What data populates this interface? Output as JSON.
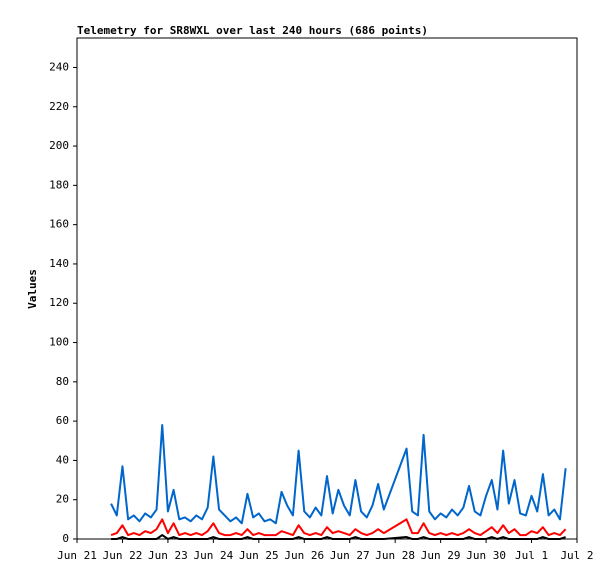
{
  "chart_data": {
    "type": "line",
    "title": "Telemetry for SR8WXL over last 240 hours (686 points)",
    "y_label": "Values",
    "xlim": [
      0,
      11
    ],
    "xticks": [
      {
        "value": 0,
        "label": "Jun 21"
      },
      {
        "value": 1,
        "label": "Jun 22"
      },
      {
        "value": 2,
        "label": "Jun 23"
      },
      {
        "value": 3,
        "label": "Jun 24"
      },
      {
        "value": 4,
        "label": "Jun 25"
      },
      {
        "value": 5,
        "label": "Jun 26"
      },
      {
        "value": 6,
        "label": "Jun 27"
      },
      {
        "value": 7,
        "label": "Jun 28"
      },
      {
        "value": 8,
        "label": "Jun 29"
      },
      {
        "value": 9,
        "label": "Jun 30"
      },
      {
        "value": 10,
        "label": "Jul 1"
      },
      {
        "value": 11,
        "label": "Jul 2"
      }
    ],
    "ylim": [
      0,
      255
    ],
    "yticks": [
      0,
      20,
      40,
      60,
      80,
      100,
      120,
      140,
      160,
      180,
      200,
      220,
      240
    ],
    "x": [
      0.75,
      0.875,
      1,
      1.125,
      1.25,
      1.375,
      1.5,
      1.625,
      1.75,
      1.875,
      2,
      2.125,
      2.25,
      2.375,
      2.5,
      2.625,
      2.75,
      2.875,
      3,
      3.125,
      3.25,
      3.375,
      3.5,
      3.625,
      3.75,
      3.875,
      4,
      4.125,
      4.25,
      4.375,
      4.5,
      4.625,
      4.75,
      4.875,
      5,
      5.125,
      5.25,
      5.375,
      5.5,
      5.625,
      5.75,
      5.875,
      6,
      6.125,
      6.25,
      6.375,
      6.5,
      6.625,
      6.75,
      7.25,
      7.375,
      7.5,
      7.625,
      7.75,
      7.875,
      8,
      8.125,
      8.25,
      8.375,
      8.5,
      8.625,
      8.75,
      8.875,
      9,
      9.125,
      9.25,
      9.375,
      9.5,
      9.625,
      9.75,
      9.875,
      10,
      10.125,
      10.25,
      10.375,
      10.5,
      10.625,
      10.75
    ],
    "series": [
      {
        "color": "#0066cc",
        "values": [
          18,
          12,
          37,
          10,
          12,
          9,
          13,
          11,
          15,
          58,
          14,
          25,
          10,
          11,
          9,
          12,
          10,
          16,
          42,
          15,
          12,
          9,
          11,
          8,
          23,
          11,
          13,
          9,
          10,
          8,
          24,
          17,
          12,
          45,
          14,
          11,
          16,
          12,
          32,
          13,
          25,
          17,
          12,
          30,
          14,
          11,
          17,
          28,
          15,
          46,
          14,
          12,
          53,
          14,
          10,
          13,
          11,
          15,
          12,
          16,
          27,
          14,
          12,
          22,
          30,
          15,
          45,
          18,
          30,
          13,
          12,
          22,
          14,
          33,
          12,
          15,
          10,
          36
        ]
      },
      {
        "color": "#ff0000",
        "values": [
          2,
          3,
          7,
          2,
          3,
          2,
          4,
          3,
          5,
          10,
          3,
          8,
          2,
          3,
          2,
          3,
          2,
          4,
          8,
          3,
          2,
          2,
          3,
          2,
          5,
          2,
          3,
          2,
          2,
          2,
          4,
          3,
          2,
          7,
          3,
          2,
          3,
          2,
          6,
          3,
          4,
          3,
          2,
          5,
          3,
          2,
          3,
          5,
          3,
          10,
          3,
          3,
          8,
          3,
          2,
          3,
          2,
          3,
          2,
          3,
          5,
          3,
          2,
          4,
          6,
          3,
          7,
          3,
          5,
          2,
          2,
          4,
          3,
          6,
          2,
          3,
          2,
          5
        ]
      },
      {
        "color": "#000000",
        "values": [
          0,
          0,
          1,
          0,
          0,
          0,
          0,
          0,
          0,
          2,
          0,
          1,
          0,
          0,
          0,
          0,
          0,
          0,
          1,
          0,
          0,
          0,
          0,
          0,
          1,
          0,
          0,
          0,
          0,
          0,
          0,
          0,
          0,
          1,
          0,
          0,
          0,
          0,
          1,
          0,
          0,
          0,
          0,
          1,
          0,
          0,
          0,
          0,
          0,
          1,
          0,
          0,
          1,
          0,
          0,
          0,
          0,
          0,
          0,
          0,
          1,
          0,
          0,
          0,
          1,
          0,
          1,
          0,
          0,
          0,
          0,
          0,
          0,
          1,
          0,
          0,
          0,
          1
        ]
      }
    ]
  }
}
